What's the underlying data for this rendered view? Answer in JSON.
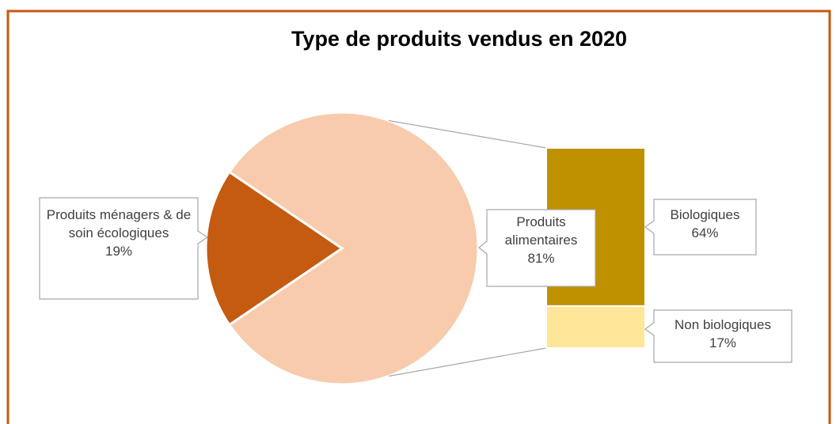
{
  "chart_data": {
    "type": "pie-of-bar",
    "title": "Type de produits vendus en 2020",
    "categories": [
      "Produits ménagers & de soin écologiques",
      "Produits alimentaires"
    ],
    "values": [
      19,
      81
    ],
    "value_labels": [
      "19%",
      "81%"
    ],
    "colors": [
      "#c55a11",
      "#f8cbad"
    ],
    "breakdown": {
      "categories": [
        "Biologiques",
        "Non biologiques"
      ],
      "values": [
        64,
        17
      ],
      "value_labels": [
        "64%",
        "17%"
      ],
      "colors": [
        "#bf9000",
        "#ffe699"
      ]
    }
  }
}
